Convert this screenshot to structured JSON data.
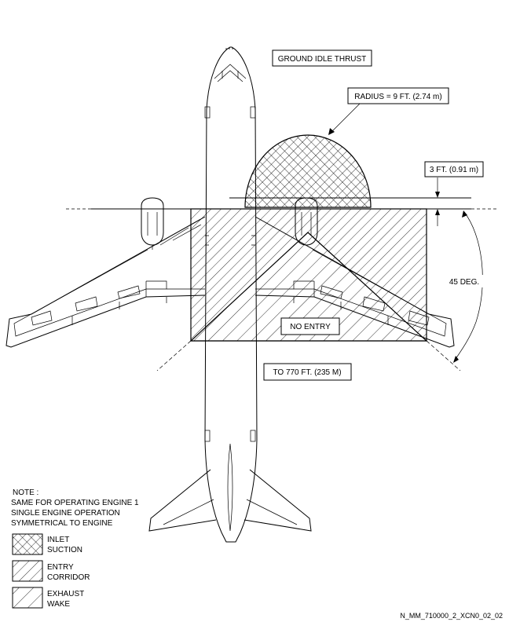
{
  "labels": {
    "ground_idle": "GROUND IDLE THRUST",
    "radius": "RADIUS = 9 FT. (2.74 m)",
    "clearance": "3 FT. (0.91 m)",
    "angle": "45 DEG.",
    "no_entry": "NO ENTRY",
    "distance": "TO 770 FT. (235 M)"
  },
  "note": {
    "title": "NOTE :",
    "lines": [
      "SAME FOR OPERATING ENGINE 1",
      "SINGLE ENGINE OPERATION",
      "SYMMETRICAL TO ENGINE"
    ]
  },
  "legend": [
    {
      "line1": "INLET",
      "line2": "SUCTION",
      "pattern": "crosshatch"
    },
    {
      "line1": "ENTRY",
      "line2": "CORRIDOR",
      "pattern": "single-hatch-dense"
    },
    {
      "line1": "EXHAUST",
      "line2": "WAKE",
      "pattern": "single-hatch-wide"
    }
  ],
  "reference_code": "N_MM_710000_2_XCN0_02_02"
}
